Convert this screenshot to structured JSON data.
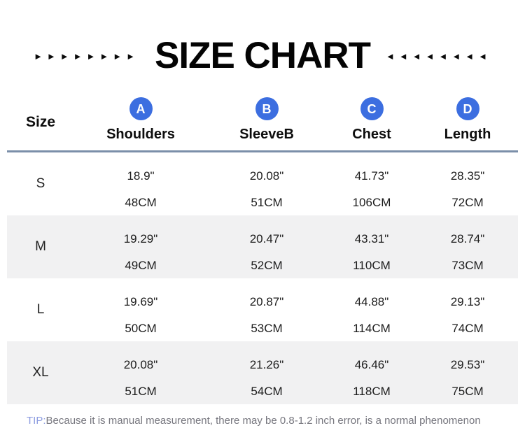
{
  "header": {
    "title": "SIZE CHART",
    "left_arrows": "►►►►►►►►",
    "right_arrows": "◄◄◄◄◄◄◄◄"
  },
  "chart_data": {
    "type": "table",
    "title": "SIZE CHART",
    "size_column_header": "Size",
    "columns": [
      {
        "badge": "A",
        "label": "Shoulders"
      },
      {
        "badge": "B",
        "label": "SleeveB"
      },
      {
        "badge": "C",
        "label": "Chest"
      },
      {
        "badge": "D",
        "label": "Length"
      }
    ],
    "rows": [
      {
        "size": "S",
        "inches": [
          "18.9\"",
          "20.08\"",
          "41.73\"",
          "28.35\""
        ],
        "cm": [
          "48CM",
          "51CM",
          "106CM",
          "72CM"
        ]
      },
      {
        "size": "M",
        "inches": [
          "19.29\"",
          "20.47\"",
          "43.31\"",
          "28.74\""
        ],
        "cm": [
          "49CM",
          "52CM",
          "110CM",
          "73CM"
        ]
      },
      {
        "size": "L",
        "inches": [
          "19.69\"",
          "20.87\"",
          "44.88\"",
          "29.13\""
        ],
        "cm": [
          "50CM",
          "53CM",
          "114CM",
          "74CM"
        ]
      },
      {
        "size": "XL",
        "inches": [
          "20.08\"",
          "21.26\"",
          "46.46\"",
          "29.53\""
        ],
        "cm": [
          "51CM",
          "54CM",
          "118CM",
          "75CM"
        ]
      }
    ]
  },
  "tip": {
    "prefix": "TIP:",
    "text": "Because it is manual measurement, there may be 0.8-1.2 inch error, is a normal phenomenon"
  },
  "colors": {
    "badge_blue": "#3c6ee0",
    "alt_row_gray": "#f1f1f2",
    "divider_slate": "#7b8fa9",
    "tip_prefix_blue": "#8c9ce0",
    "tip_text_gray": "#76767e",
    "title_black": "#040404"
  }
}
